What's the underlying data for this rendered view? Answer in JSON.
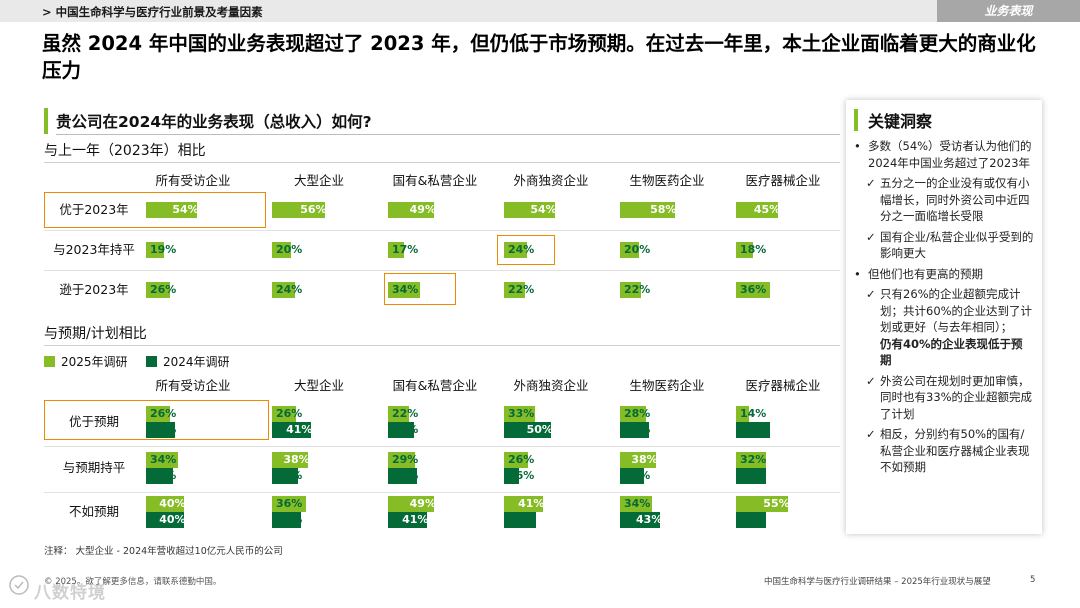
{
  "header": {
    "breadcrumb": "> 中国生命科学与医疗行业前景及考量因素",
    "section_tab": "业务表现"
  },
  "headline": "虽然 2024 年中国的业务表现超过了 2023 年，但仍低于市场预期。在过去一年里，本土企业面临着更大的商业化压力",
  "question": "贵公司在2024年的业务表现（总收入）如何?",
  "colors": {
    "light_green": "#86bc25",
    "dark_green": "#046a38",
    "highlight": "#ed8b00"
  },
  "chart_data": [
    {
      "type": "bar",
      "title": "与上一年（2023年）相比",
      "categories": [
        "所有受访企业",
        "大型企业",
        "国有&私营企业",
        "外商独资企业",
        "生物医药企业",
        "医疗器械企业"
      ],
      "rows": [
        "优于2023年",
        "与2023年持平",
        "逊于2023年"
      ],
      "values": [
        [
          54,
          56,
          49,
          54,
          58,
          45
        ],
        [
          19,
          20,
          17,
          24,
          20,
          18
        ],
        [
          26,
          24,
          34,
          22,
          22,
          36
        ]
      ],
      "unit": "%",
      "xlim": [
        0,
        100
      ]
    },
    {
      "type": "bar",
      "title": "与预期/计划相比",
      "categories": [
        "所有受访企业",
        "大型企业",
        "国有&私营企业",
        "外商独资企业",
        "生物医药企业",
        "医疗器械企业"
      ],
      "rows": [
        "优于预期",
        "与预期持平",
        "不如预期"
      ],
      "series": [
        {
          "name": "2025年调研",
          "values": [
            [
              26,
              26,
              22,
              33,
              28,
              14
            ],
            [
              34,
              38,
              29,
              26,
              38,
              32
            ],
            [
              40,
              36,
              49,
              41,
              34,
              55
            ]
          ]
        },
        {
          "name": "2024年调研",
          "values": [
            [
              31,
              41,
              28,
              50,
              31,
              36
            ],
            [
              29,
              28,
              31,
              16,
              26,
              32
            ],
            [
              40,
              31,
              41,
              34,
              43,
              32
            ]
          ]
        }
      ],
      "unit": "%",
      "xlim": [
        0,
        100
      ]
    }
  ],
  "insights": {
    "title": "关键洞察",
    "items": [
      {
        "level": 1,
        "marker": "•",
        "text": "多数（54%）受访者认为他们的2024年中国业务超过了2023年"
      },
      {
        "level": 2,
        "marker": "✓",
        "text": "五分之一的企业没有或仅有小幅增长，同时外资公司中近四分之一面临增长受限"
      },
      {
        "level": 2,
        "marker": "✓",
        "text": "国有企业/私营企业似乎受到的影响更大"
      },
      {
        "level": 1,
        "marker": "•",
        "text": "但他们也有更高的预期"
      },
      {
        "level": 2,
        "marker": "✓",
        "text": "只有26%的企业超额完成计划；共计60%的企业达到了计划或更好（与去年相同）；"
      },
      {
        "level": 2,
        "marker": "",
        "text": "仍有40%的企业表现低于预期",
        "emphasis": true
      },
      {
        "level": 2,
        "marker": "✓",
        "text": "外资公司在规划时更加审慎，同时也有33%的企业超额完成了计划"
      },
      {
        "level": 2,
        "marker": "✓",
        "text": "相反，分别约有50%的国有/私营企业和医疗器械企业表现不如预期"
      }
    ]
  },
  "footnote": "注释：  大型企业 - 2024年营收超过10亿元人民币的公司",
  "footer": {
    "copyright": "© 2025。欲了解更多信息，请联系德勤中国。",
    "title": "中国生命科学与医疗行业调研结果 – 2025年行业现状与展望",
    "page": "5"
  },
  "watermark": "八数特境"
}
